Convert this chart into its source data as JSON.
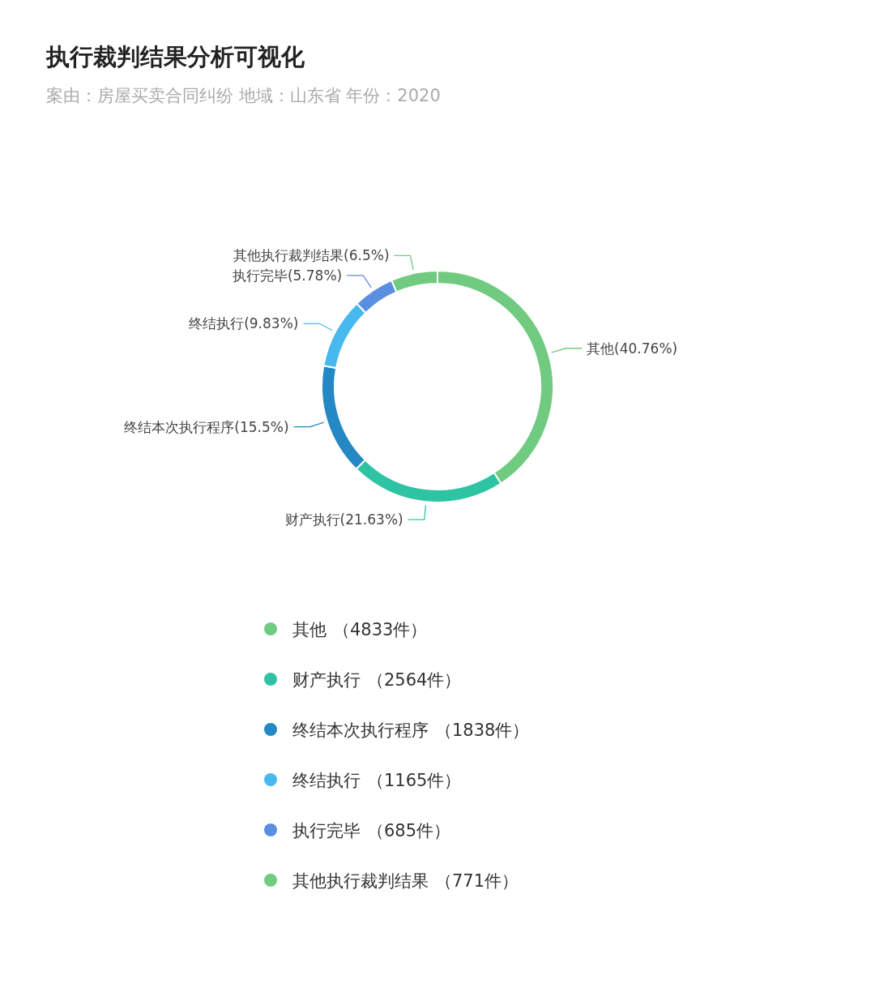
{
  "chart_data": {
    "type": "donut",
    "title": "执行裁判结果分析可视化",
    "subtitle": "案由：房屋买卖合同纠纷  地域：山东省  年份：2020",
    "categories": [
      "其他",
      "财产执行",
      "终结本次执行程序",
      "终结执行",
      "执行完毕",
      "其他执行裁判结果"
    ],
    "values": [
      40.76,
      21.63,
      15.5,
      9.83,
      5.78,
      6.5
    ],
    "colors": [
      "#70cb80",
      "#2ec3a3",
      "#2488c4",
      "#47b9ef",
      "#5a8ee0",
      "#70cb80"
    ],
    "value_labels": [
      "(40.76%)",
      "(21.63%)",
      "(15.5%)",
      "(9.83%)",
      "(5.78%)",
      "(6.5%)"
    ],
    "annotations": [
      "（4833件）",
      "（2564件）",
      "（1838件）",
      "（1165件）",
      "（685件）",
      "（771件）"
    ],
    "legend": "bottom"
  }
}
